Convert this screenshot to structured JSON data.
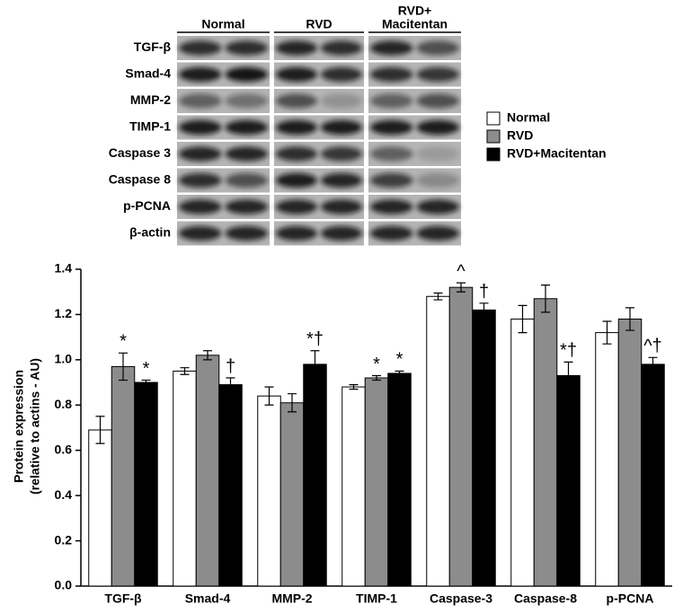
{
  "blot": {
    "groups": [
      [
        "Normal"
      ],
      [
        "RVD"
      ],
      [
        "RVD+",
        "Macitentan"
      ]
    ],
    "rows": [
      "TGF-β",
      "Smad-4",
      "MMP-2",
      "TIMP-1",
      "Caspase 3",
      "Caspase 8",
      "p-PCNA",
      "β-actin"
    ]
  },
  "chart_data": {
    "type": "bar",
    "y_label": [
      "Protein expression",
      "(relative to actins - AU)"
    ],
    "categories": [
      "TGF-β",
      "Smad-4",
      "MMP-2",
      "TIMP-1",
      "Caspase-3",
      "Caspase-8",
      "p-PCNA"
    ],
    "series": [
      {
        "name": "Normal",
        "color": "#ffffff",
        "values": [
          0.69,
          0.95,
          0.84,
          0.88,
          1.28,
          1.18,
          1.12
        ],
        "errors": [
          0.06,
          0.015,
          0.04,
          0.01,
          0.015,
          0.06,
          0.05
        ],
        "markers": [
          null,
          null,
          null,
          null,
          null,
          null,
          null
        ]
      },
      {
        "name": "RVD",
        "color": "#8c8c8c",
        "values": [
          0.97,
          1.02,
          0.81,
          0.92,
          1.32,
          1.27,
          1.18
        ],
        "errors": [
          0.06,
          0.02,
          0.04,
          0.01,
          0.02,
          0.06,
          0.05
        ],
        "markers": [
          "*",
          null,
          null,
          "*",
          "^",
          null,
          null
        ]
      },
      {
        "name": "RVD+Macitentan",
        "color": "#000000",
        "values": [
          0.9,
          0.89,
          0.98,
          0.94,
          1.22,
          0.93,
          0.98
        ],
        "errors": [
          0.01,
          0.03,
          0.06,
          0.01,
          0.03,
          0.06,
          0.03
        ],
        "markers": [
          "*",
          "†",
          "*†",
          "*",
          "†",
          "*†",
          "^†"
        ]
      }
    ],
    "ylim": [
      0,
      1.4
    ],
    "yticks": [
      {
        "value": 0,
        "label": "0.0"
      },
      0.2,
      0.4,
      0.6,
      0.8,
      {
        "value": 1,
        "label": "1.0"
      },
      1.2,
      1.4
    ],
    "legend": "right"
  }
}
